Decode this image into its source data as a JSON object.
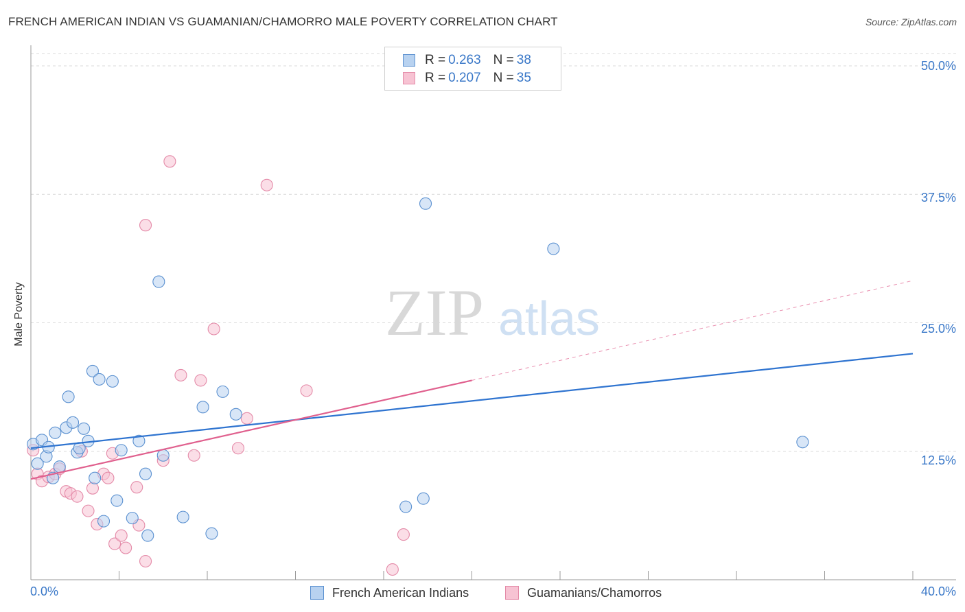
{
  "header": {
    "title": "FRENCH AMERICAN INDIAN VS GUAMANIAN/CHAMORRO MALE POVERTY CORRELATION CHART",
    "source": "Source: ZipAtlas.com"
  },
  "legend": {
    "rows": [
      {
        "r_label": "R =",
        "r_value": "0.263",
        "n_label": "N =",
        "n_value": "38"
      },
      {
        "r_label": "R =",
        "r_value": "0.207",
        "n_label": "N =",
        "n_value": "35"
      }
    ]
  },
  "bottom_legend": [
    "French American Indians",
    "Guamanians/Chamorros"
  ],
  "watermark": {
    "zip": "ZIP",
    "atlas": "atlas"
  },
  "colors": {
    "blue_fill": "#b8d2f0",
    "blue_stroke": "#5a90d0",
    "blue_line": "#2f74d0",
    "pink_fill": "#f7c3d3",
    "pink_stroke": "#e48aa8",
    "pink_line": "#e0608e",
    "tick_text": "#3a78c8",
    "grid": "#d8d8d8"
  },
  "chart_data": {
    "type": "scatter",
    "title": "FRENCH AMERICAN INDIAN VS GUAMANIAN/CHAMORRO MALE POVERTY CORRELATION CHART",
    "xlabel": "",
    "ylabel": "Male Poverty",
    "xlim": [
      0,
      40
    ],
    "ylim": [
      0,
      50
    ],
    "x_tick_labels": [
      "0.0%",
      "40.0%"
    ],
    "y_ticks": [
      12.5,
      25.0,
      37.5,
      50.0
    ],
    "y_tick_labels": [
      "12.5%",
      "25.0%",
      "37.5%",
      "50.0%"
    ],
    "grid": true,
    "legend_position": "top-center",
    "series": [
      {
        "name": "French American Indians",
        "r": 0.263,
        "n": 38,
        "trend": {
          "x": [
            0,
            40
          ],
          "y": [
            12.8,
            22.0
          ],
          "dashed_after": null
        },
        "points": [
          [
            0.1,
            13.2
          ],
          [
            0.3,
            11.3
          ],
          [
            0.5,
            13.6
          ],
          [
            0.7,
            12.0
          ],
          [
            0.8,
            12.9
          ],
          [
            1.0,
            9.9
          ],
          [
            1.1,
            14.3
          ],
          [
            1.3,
            11.0
          ],
          [
            1.6,
            14.8
          ],
          [
            1.7,
            17.8
          ],
          [
            1.9,
            15.3
          ],
          [
            2.1,
            12.4
          ],
          [
            2.2,
            12.8
          ],
          [
            2.4,
            14.7
          ],
          [
            2.6,
            13.5
          ],
          [
            2.8,
            20.3
          ],
          [
            2.9,
            9.9
          ],
          [
            3.1,
            19.5
          ],
          [
            3.3,
            5.7
          ],
          [
            3.7,
            19.3
          ],
          [
            3.9,
            7.7
          ],
          [
            4.1,
            12.6
          ],
          [
            4.6,
            6.0
          ],
          [
            4.9,
            13.5
          ],
          [
            5.2,
            10.3
          ],
          [
            5.3,
            4.3
          ],
          [
            5.8,
            29.0
          ],
          [
            6.0,
            12.1
          ],
          [
            6.9,
            6.1
          ],
          [
            7.8,
            16.8
          ],
          [
            8.2,
            4.5
          ],
          [
            8.7,
            18.3
          ],
          [
            9.3,
            16.1
          ],
          [
            17.0,
            7.1
          ],
          [
            17.8,
            7.9
          ],
          [
            17.9,
            36.6
          ],
          [
            23.7,
            32.2
          ],
          [
            35.0,
            13.4
          ]
        ]
      },
      {
        "name": "Guamanians/Chamorros",
        "r": 0.207,
        "n": 35,
        "trend": {
          "x": [
            0,
            20
          ],
          "y": [
            9.8,
            19.4
          ],
          "dashed_to": {
            "x": 40,
            "y": 29.1
          }
        },
        "points": [
          [
            0.1,
            12.6
          ],
          [
            0.3,
            10.3
          ],
          [
            0.5,
            9.6
          ],
          [
            0.8,
            10.0
          ],
          [
            1.1,
            10.3
          ],
          [
            1.3,
            10.8
          ],
          [
            1.6,
            8.6
          ],
          [
            1.8,
            8.4
          ],
          [
            2.1,
            8.1
          ],
          [
            2.3,
            12.5
          ],
          [
            2.6,
            6.7
          ],
          [
            2.8,
            8.9
          ],
          [
            3.0,
            5.4
          ],
          [
            3.3,
            10.3
          ],
          [
            3.5,
            9.9
          ],
          [
            3.7,
            12.3
          ],
          [
            3.8,
            3.5
          ],
          [
            4.1,
            4.3
          ],
          [
            4.3,
            3.1
          ],
          [
            4.8,
            9.0
          ],
          [
            4.9,
            5.3
          ],
          [
            5.2,
            1.8
          ],
          [
            5.2,
            34.5
          ],
          [
            6.0,
            11.6
          ],
          [
            6.3,
            40.7
          ],
          [
            6.8,
            19.9
          ],
          [
            7.4,
            12.1
          ],
          [
            7.7,
            19.4
          ],
          [
            8.3,
            24.4
          ],
          [
            9.4,
            12.8
          ],
          [
            9.8,
            15.7
          ],
          [
            10.7,
            38.4
          ],
          [
            12.5,
            18.4
          ],
          [
            16.4,
            1.0
          ],
          [
            16.9,
            4.4
          ]
        ]
      }
    ]
  }
}
